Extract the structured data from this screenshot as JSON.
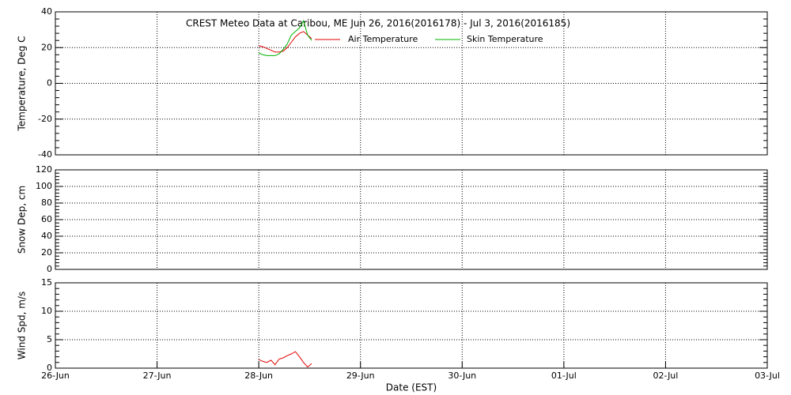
{
  "chart_data": [
    {
      "type": "line",
      "title": "CREST Meteo Data at Caribou, ME   Jun 26, 2016(2016178) - Jul  3, 2016(2016185)",
      "ylabel": "Temperature, Deg C",
      "ylim": [
        -40,
        40
      ],
      "yticks": [
        -40,
        -20,
        0,
        20,
        40
      ],
      "x": [
        180.0,
        180.04,
        180.08,
        180.12,
        180.16,
        180.2,
        180.24,
        180.28,
        180.32,
        180.36,
        180.4,
        180.44,
        180.48,
        180.52
      ],
      "series": [
        {
          "name": "Air Temperature",
          "color": "#e00000",
          "values": [
            21,
            20.5,
            19.5,
            18.5,
            17.5,
            17.5,
            18,
            20,
            23,
            26,
            28,
            29,
            27,
            25
          ]
        },
        {
          "name": "Skin Temperature",
          "color": "#00b000",
          "values": [
            17,
            16,
            15.5,
            15.5,
            15.5,
            16.5,
            19,
            22,
            27,
            29,
            31,
            35,
            27,
            24
          ]
        }
      ],
      "grid": true
    },
    {
      "type": "line",
      "ylabel": "Snow Dep, cm",
      "ylim": [
        0,
        120
      ],
      "yticks": [
        0,
        20,
        40,
        60,
        80,
        100,
        120
      ],
      "x": [],
      "series": [],
      "grid": true
    },
    {
      "type": "line",
      "ylabel": "Wind Spd, m/s",
      "ylim": [
        0,
        15
      ],
      "yticks": [
        0,
        5,
        10,
        15
      ],
      "x": [
        180.0,
        180.04,
        180.08,
        180.12,
        180.16,
        180.2,
        180.24,
        180.28,
        180.32,
        180.36,
        180.4,
        180.44,
        180.48,
        180.52
      ],
      "series": [
        {
          "color": "#e00000",
          "values": [
            1.5,
            1.2,
            1.0,
            1.4,
            0.6,
            1.6,
            1.8,
            2.2,
            2.5,
            2.9,
            2.0,
            1.0,
            0.2,
            0.8
          ]
        }
      ],
      "xlabel": "Date (EST)",
      "xlim": [
        178,
        185
      ],
      "xticks": [
        {
          "value": 178,
          "label": "26-Jun"
        },
        {
          "value": 179,
          "label": "27-Jun"
        },
        {
          "value": 180,
          "label": "28-Jun"
        },
        {
          "value": 181,
          "label": "29-Jun"
        },
        {
          "value": 182,
          "label": "30-Jun"
        },
        {
          "value": 183,
          "label": "01-Jul"
        },
        {
          "value": 184,
          "label": "02-Jul"
        },
        {
          "value": 185,
          "label": "03-Jul"
        }
      ],
      "grid": true
    }
  ]
}
